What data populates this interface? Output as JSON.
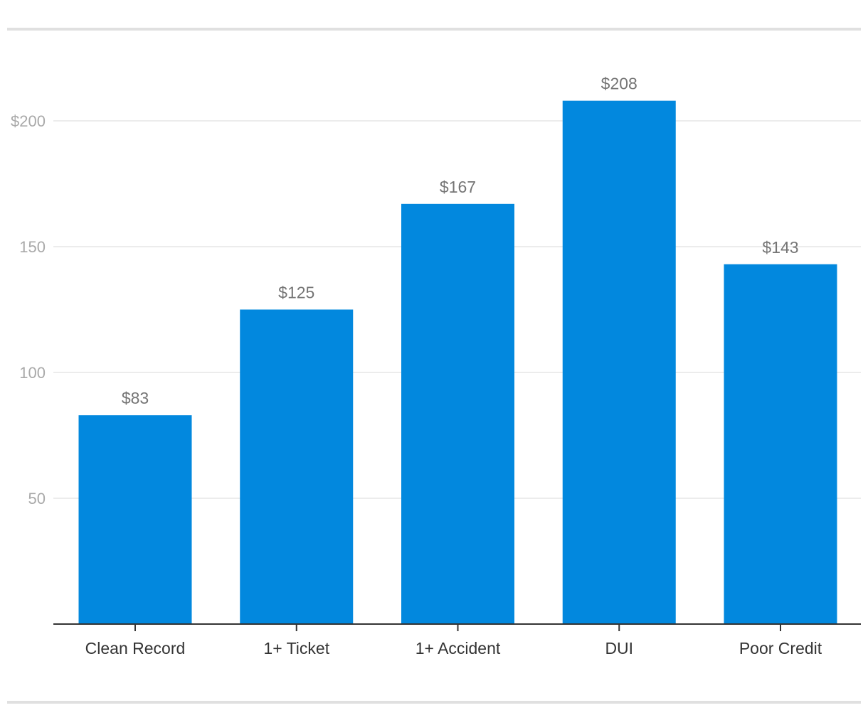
{
  "chart_data": {
    "type": "bar",
    "categories": [
      "Clean Record",
      "1+ Ticket",
      "1+ Accident",
      "DUI",
      "Poor Credit"
    ],
    "values": [
      83,
      125,
      167,
      208,
      143
    ],
    "value_labels": [
      "$83",
      "$125",
      "$167",
      "$208",
      "$143"
    ],
    "yticks": [
      50,
      100,
      150,
      200
    ],
    "ytick_labels": [
      "50",
      "100",
      "150",
      "$200"
    ],
    "ylim": [
      0,
      235
    ],
    "grid": true,
    "colors": {
      "bar": "#0288DE",
      "grid": "#e6e6e6",
      "axis": "#333333",
      "frame": "#e0e0e0"
    }
  }
}
